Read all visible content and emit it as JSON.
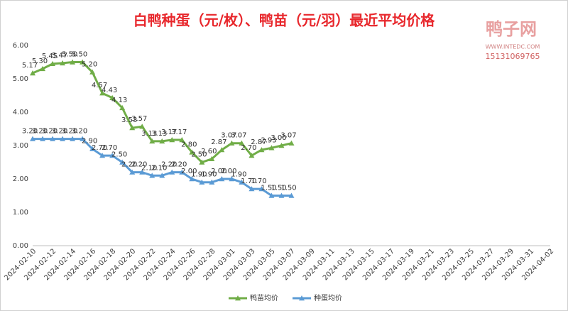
{
  "chart_data": {
    "type": "line",
    "title": "白鸭种蛋（元/枚）、鸭苗（元/羽）最近平均价格",
    "watermark": {
      "name": "鸭子网",
      "site": "WWW.INTEDC.COM",
      "phone": "15131069765"
    },
    "categories": [
      "2024-02-10",
      null,
      "2024-02-12",
      null,
      "2024-02-14",
      null,
      "2024-02-16",
      null,
      "2024-02-18",
      null,
      "2024-02-20",
      null,
      "2024-02-22",
      null,
      "2024-02-24",
      null,
      "2024-02-26",
      null,
      "2024-02-28",
      null,
      "2024-03-01",
      null,
      "2024-03-03",
      null,
      "2024-03-05",
      null,
      "2024-03-07",
      null,
      "2024-03-09",
      null,
      "2024-03-11",
      null,
      "2024-03-13",
      null,
      "2024-03-15",
      null,
      "2024-03-17",
      null,
      "2024-03-19",
      null,
      "2024-03-21",
      null,
      "2024-03-23",
      null,
      "2024-03-25",
      null,
      "2024-03-27",
      null,
      "2024-03-29",
      null,
      "2024-03-31",
      null,
      "2024-04-02"
    ],
    "series": [
      {
        "name": "鸭苗均价",
        "color": "#70ad47",
        "values": [
          5.17,
          5.3,
          5.45,
          5.47,
          5.5,
          5.5,
          5.2,
          4.57,
          4.43,
          4.13,
          3.53,
          3.57,
          3.13,
          3.13,
          3.17,
          3.17,
          2.8,
          2.5,
          2.6,
          2.87,
          3.07,
          3.07,
          2.7,
          2.87,
          2.93,
          3.0,
          3.07,
          null,
          null,
          null,
          null,
          null,
          null,
          null,
          null,
          null,
          null,
          null,
          null,
          null,
          null,
          null,
          null,
          null,
          null,
          null,
          null,
          null,
          null,
          null,
          null,
          null,
          null
        ],
        "value_labels": [
          "5.17",
          "5.30",
          "5.45",
          "5.47",
          "5.50",
          "5.50",
          "5.20",
          "4.57",
          "4.43",
          "4.13",
          "3.53",
          "3.57",
          "3.13",
          "3.13",
          "3.17",
          "3.17",
          "2.80",
          "2.50",
          "2.60",
          "2.87",
          "3.07",
          "3.07",
          "2.70",
          "2.87",
          "2.93",
          "3.00",
          "3.07",
          null,
          null,
          null,
          null,
          null,
          null,
          null,
          null,
          null,
          null,
          null,
          null,
          null,
          null,
          null,
          null,
          null,
          null,
          null,
          null,
          null,
          null,
          null,
          null,
          null,
          null
        ]
      },
      {
        "name": "种蛋均价",
        "color": "#5b9bd5",
        "values": [
          3.2,
          3.2,
          3.2,
          3.2,
          3.2,
          3.2,
          2.9,
          2.7,
          2.7,
          2.5,
          2.2,
          2.2,
          2.1,
          2.1,
          2.2,
          2.2,
          2.0,
          1.9,
          1.9,
          2.0,
          2.0,
          1.9,
          1.7,
          1.7,
          1.5,
          1.5,
          1.5,
          null,
          null,
          null,
          null,
          null,
          null,
          null,
          null,
          null,
          null,
          null,
          null,
          null,
          null,
          null,
          null,
          null,
          null,
          null,
          null,
          null,
          null,
          null,
          null,
          null,
          null
        ],
        "value_labels": [
          "3.20",
          "3.20",
          "3.20",
          "3.20",
          "3.20",
          "3.20",
          "2.90",
          "2.70",
          "2.70",
          "2.50",
          "2.20",
          "2.20",
          "2.10",
          "2.10",
          "2.20",
          "2.20",
          "2.00",
          "1.90",
          "1.90",
          "2.00",
          "2.00",
          "1.90",
          "1.70",
          "1.70",
          "1.50",
          "1.50",
          "1.50",
          null,
          null,
          null,
          null,
          null,
          null,
          null,
          null,
          null,
          null,
          null,
          null,
          null,
          null,
          null,
          null,
          null,
          null,
          null,
          null,
          null,
          null,
          null,
          null,
          null,
          null
        ]
      }
    ],
    "ylim": [
      0,
      6
    ],
    "yticks": [
      {
        "value": 0,
        "label": "0.00"
      },
      {
        "value": 1,
        "label": "1.00"
      },
      {
        "value": 2,
        "label": "2.00"
      },
      {
        "value": 3,
        "label": "3.00"
      },
      {
        "value": 4,
        "label": "4.00"
      },
      {
        "value": 5,
        "label": "5.00"
      },
      {
        "value": 6,
        "label": "6.00"
      }
    ],
    "grid": false,
    "legend": "bottom"
  }
}
